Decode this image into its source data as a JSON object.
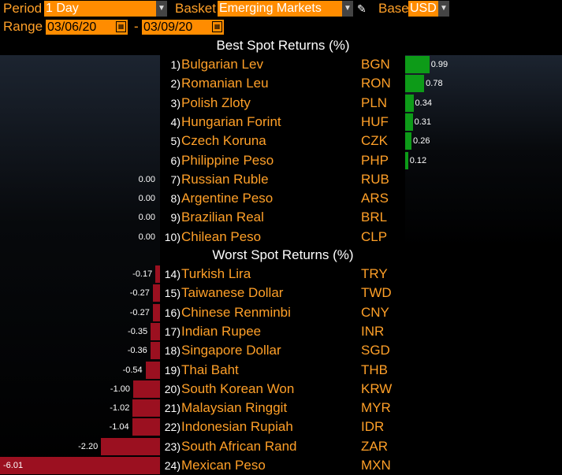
{
  "toolbar": {
    "period_label": "Period",
    "period_value": "1 Day",
    "basket_label": "Basket",
    "basket_value": "Emerging Markets",
    "base_label": "Base",
    "base_value": "USD",
    "range_label": "Range",
    "range_start": "03/06/20",
    "range_sep": "-",
    "range_end": "03/09/20"
  },
  "icons": {
    "dropdown": "chevron-down-icon",
    "calendar": "calendar-icon",
    "edit": "pencil-icon"
  },
  "colors": {
    "positive_bar": "#0d9b18",
    "negative_bar": "#9b1020",
    "accent": "#ff8c00"
  },
  "chart_data": {
    "type": "bar",
    "best_heading": "Best Spot Returns (%)",
    "worst_heading": "Worst Spot Returns (%)",
    "best": [
      {
        "rank": "1)",
        "name": "Bulgarian Lev",
        "code": "BGN",
        "value": 0.99,
        "label": "0.99"
      },
      {
        "rank": "2)",
        "name": "Romanian Leu",
        "code": "RON",
        "value": 0.78,
        "label": "0.78"
      },
      {
        "rank": "3)",
        "name": "Polish Zloty",
        "code": "PLN",
        "value": 0.34,
        "label": "0.34"
      },
      {
        "rank": "4)",
        "name": "Hungarian Forint",
        "code": "HUF",
        "value": 0.31,
        "label": "0.31"
      },
      {
        "rank": "5)",
        "name": "Czech Koruna",
        "code": "CZK",
        "value": 0.26,
        "label": "0.26"
      },
      {
        "rank": "6)",
        "name": "Philippine Peso",
        "code": "PHP",
        "value": 0.12,
        "label": "0.12"
      },
      {
        "rank": "7)",
        "name": "Russian Ruble",
        "code": "RUB",
        "value": 0.0,
        "label": "0.00"
      },
      {
        "rank": "8)",
        "name": "Argentine Peso",
        "code": "ARS",
        "value": 0.0,
        "label": "0.00"
      },
      {
        "rank": "9)",
        "name": "Brazilian Real",
        "code": "BRL",
        "value": 0.0,
        "label": "0.00"
      },
      {
        "rank": "10)",
        "name": "Chilean Peso",
        "code": "CLP",
        "value": 0.0,
        "label": "0.00"
      }
    ],
    "worst": [
      {
        "rank": "14)",
        "name": "Turkish Lira",
        "code": "TRY",
        "value": -0.17,
        "label": "-0.17"
      },
      {
        "rank": "15)",
        "name": "Taiwanese Dollar",
        "code": "TWD",
        "value": -0.27,
        "label": "-0.27"
      },
      {
        "rank": "16)",
        "name": "Chinese Renminbi",
        "code": "CNY",
        "value": -0.27,
        "label": "-0.27"
      },
      {
        "rank": "17)",
        "name": "Indian Rupee",
        "code": "INR",
        "value": -0.35,
        "label": "-0.35"
      },
      {
        "rank": "18)",
        "name": "Singapore Dollar",
        "code": "SGD",
        "value": -0.36,
        "label": "-0.36"
      },
      {
        "rank": "19)",
        "name": "Thai Baht",
        "code": "THB",
        "value": -0.54,
        "label": "-0.54"
      },
      {
        "rank": "20)",
        "name": "South Korean Won",
        "code": "KRW",
        "value": -1.0,
        "label": "-1.00"
      },
      {
        "rank": "21)",
        "name": "Malaysian Ringgit",
        "code": "MYR",
        "value": -1.02,
        "label": "-1.02"
      },
      {
        "rank": "22)",
        "name": "Indonesian Rupiah",
        "code": "IDR",
        "value": -1.04,
        "label": "-1.04"
      },
      {
        "rank": "23)",
        "name": "South African Rand",
        "code": "ZAR",
        "value": -2.2,
        "label": "-2.20"
      },
      {
        "rank": "24)",
        "name": "Mexican Peso",
        "code": "MXN",
        "value": -6.01,
        "label": "-6.01"
      }
    ]
  }
}
